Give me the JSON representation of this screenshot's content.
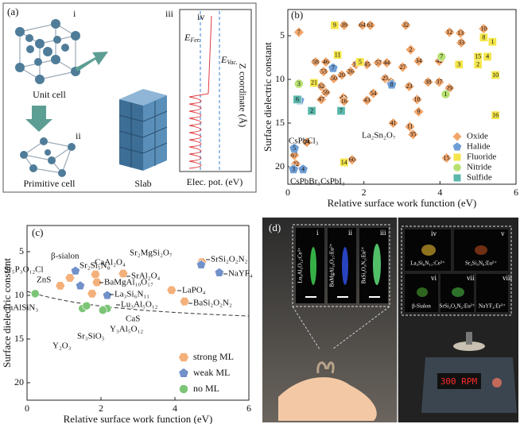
{
  "panel_a": {
    "label": "(a)",
    "sublabels": [
      "i",
      "ii",
      "iii",
      "iv"
    ],
    "captions": [
      "Unit cell",
      "Primitive cell",
      "Slab"
    ],
    "e_fermi": {
      "main": "E",
      "sub": "Fer."
    },
    "e_vac": {
      "main": "E",
      "sub": "Vac."
    },
    "z_label": "Z coordinate (Å)",
    "x_label": "Elec. pot. (eV)"
  },
  "chart_data": [
    {
      "type": "scatter",
      "panel_label": "(b)",
      "x_label": "Relative surface work function (eV)",
      "y_label": "Surface dielectric constant",
      "xlim": [
        0,
        6
      ],
      "ylim": [
        22,
        2
      ],
      "xticks": [
        0,
        2,
        4,
        6
      ],
      "yticks": [
        5,
        10,
        15,
        20
      ],
      "legend": "lower right",
      "series": [
        {
          "name": "Oxide",
          "color": "#f2a66b",
          "marker": "diamond",
          "x": [
            0.29,
            1.48,
            1.96,
            2.17,
            3.1,
            4.25,
            4.54,
            5.15,
            4.56,
            3.23,
            0.73,
            1.0,
            1.79,
            2.08,
            2.38,
            2.6,
            3.44,
            3.98,
            3.02,
            1.42,
            1.65,
            1.21,
            2.56,
            2.71,
            3.69,
            3.98,
            4.25,
            3.19,
            2.25,
            1.0,
            1.46,
            1.48,
            2.08,
            0.88,
            0.88,
            3.4,
            3.44,
            2.77,
            3.21,
            3.29,
            0.5,
            0.17,
            0.21,
            1.69,
            4.17,
            0.94
          ],
          "values": [
            4.6,
            3.8,
            3.8,
            3.8,
            3.8,
            4.6,
            4.7,
            4.2,
            5.8,
            6.6,
            8.0,
            8.0,
            8.3,
            8.3,
            8.1,
            8.1,
            7.9,
            7.9,
            8.6,
            9.5,
            9.1,
            9.9,
            9.9,
            10.3,
            10.3,
            10.3,
            11.0,
            10.8,
            11.6,
            11.5,
            12.1,
            12.5,
            12.4,
            12.3,
            10.8,
            12.3,
            13.7,
            15.0,
            15.4,
            16.3,
            17.2,
            18.7,
            19.7,
            19.2,
            19.0,
            9.1
          ],
          "point_labels": [
            "7",
            "39",
            "64",
            "61",
            "32",
            "12",
            "13",
            "10",
            "33",
            "2",
            "58",
            "46",
            "31",
            "45",
            "57",
            "44",
            "34",
            "42",
            "27",
            "20",
            "26",
            "50",
            "25",
            "28",
            "38",
            "37",
            "29",
            "23",
            "54",
            "59",
            "49",
            "16",
            "43",
            "47",
            "62",
            "18",
            "9",
            "41",
            "11",
            "35",
            "24",
            "67",
            "22",
            "60",
            "15",
            "53"
          ]
        },
        {
          "name": "Halide",
          "color": "#6f9fd6",
          "marker": "pentagon",
          "x": [
            1.19,
            0.31,
            2.73,
            0.17,
            0.15,
            0.4
          ],
          "values": [
            8.7,
            12.4,
            10.6,
            17.9,
            20.3,
            20.3
          ],
          "point_labels": [
            "7",
            "6",
            "8",
            "5",
            "3",
            "4"
          ]
        },
        {
          "name": "Fluoride",
          "color": "#f4e64a",
          "marker": "square",
          "x": [
            1.23,
            1.31,
            1.9,
            5.15,
            5.38,
            5.0,
            5.25,
            5.0,
            5.46,
            5.46,
            4.5,
            1.48,
            0.69
          ],
          "values": [
            3.8,
            7.2,
            8.0,
            5.2,
            5.7,
            7.4,
            7.4,
            8.3,
            9.5,
            14.1,
            8.3,
            19.5,
            10.4
          ],
          "point_labels": [
            "9",
            "11",
            "5",
            "8",
            "1",
            "15",
            "4",
            "2",
            "10",
            "16",
            "3",
            "14",
            "21"
          ]
        },
        {
          "name": "Nitride",
          "color": "#b7e070",
          "marker": "circle",
          "x": [
            0.29,
            4.15,
            4.04
          ],
          "values": [
            10.5,
            11.7,
            7.4
          ],
          "point_labels": [
            "3",
            "1",
            "7"
          ]
        },
        {
          "name": "Sulfide",
          "color": "#5bb8ac",
          "marker": "square",
          "x": [
            0.25,
            0.63,
            1.4
          ],
          "values": [
            12.3,
            13.6,
            13.6
          ],
          "point_labels": [
            "6",
            "2",
            "7"
          ]
        }
      ],
      "annotations": [
        "CsPbCl₃",
        "CsPbBr₃CsPbI₃",
        "La₂Sn₂O₇"
      ]
    },
    {
      "type": "scatter",
      "panel_label": "(c)",
      "x_label": "Relative surface work function (eV)",
      "y_label": "Surface dielectric constant",
      "xlim": [
        0,
        6
      ],
      "ylim": [
        22,
        2
      ],
      "xticks": [
        0,
        2,
        4,
        6
      ],
      "yticks": [
        5,
        10,
        15,
        20
      ],
      "legend": "lower right",
      "series": [
        {
          "name": "strong ML",
          "color": "#f4b07a",
          "marker": "hexagon",
          "x": [
            1.16,
            0.9,
            1.85,
            1.89,
            2.6,
            1.76,
            4.73,
            3.91,
            4.26
          ],
          "values": [
            8.0,
            8.9,
            7.6,
            8.5,
            7.5,
            9.8,
            6.2,
            9.4,
            10.7
          ],
          "point_labels": [
            "Sr₅P₃O₁₂Cl",
            "ZnS",
            "CaAl₂O₄",
            "BaMgAl₁₀O₁₇",
            "SrAl₂O₄",
            "Lu₃Al₅O₁₂",
            "Sr₂MgSi₂O₇",
            "LaPO₄",
            "BaSi₂O₂N₂"
          ]
        },
        {
          "name": "weak ML",
          "color": "#7191c9",
          "marker": "pentagon",
          "x": [
            1.31,
            1.44,
            2.17,
            4.71,
            5.2
          ],
          "values": [
            7.2,
            8.9,
            10.0,
            6.5,
            7.4
          ],
          "point_labels": [
            "β-sialon",
            "Sr₂Si₅N₈",
            "La₃Si₆N₁₁",
            "SrSi₂O₂N₂",
            "NaYF₄"
          ]
        },
        {
          "name": "no ML",
          "color": "#7cc576",
          "marker": "circle",
          "x": [
            0.22,
            1.5,
            1.61,
            2.17,
            2.05
          ],
          "values": [
            9.8,
            11.5,
            11.2,
            11.5,
            11.7
          ],
          "point_labels": [
            "CaAlSiN₃",
            "Y₂O₃",
            "Sr₃SiO₅",
            "CaS",
            "Y₃Al₅O₁₂"
          ]
        }
      ]
    }
  ],
  "panel_d": {
    "label": "(d)",
    "insets": [
      {
        "num": "i",
        "caption": "Lu₃Al₅O₁₂:Ce³⁺"
      },
      {
        "num": "ii",
        "caption": "BaMgAl₁₀O₁₇:Eu²⁺"
      },
      {
        "num": "iii",
        "caption": "BaSi₂O₂N₂:Eu²⁺"
      },
      {
        "num": "iv",
        "caption": "La₃Si₆N₁₁:Ce³⁺"
      },
      {
        "num": "v",
        "caption": "Sr₂Si₅N₈:Eu²⁺"
      },
      {
        "num": "vi",
        "caption": "β-Sialon"
      },
      {
        "num": "vii",
        "caption": "SrSi₂O₂N₂:Eu²⁺"
      },
      {
        "num": "viii",
        "caption": "NaYF₄:Er³⁺"
      }
    ],
    "display": "300 RPM"
  }
}
